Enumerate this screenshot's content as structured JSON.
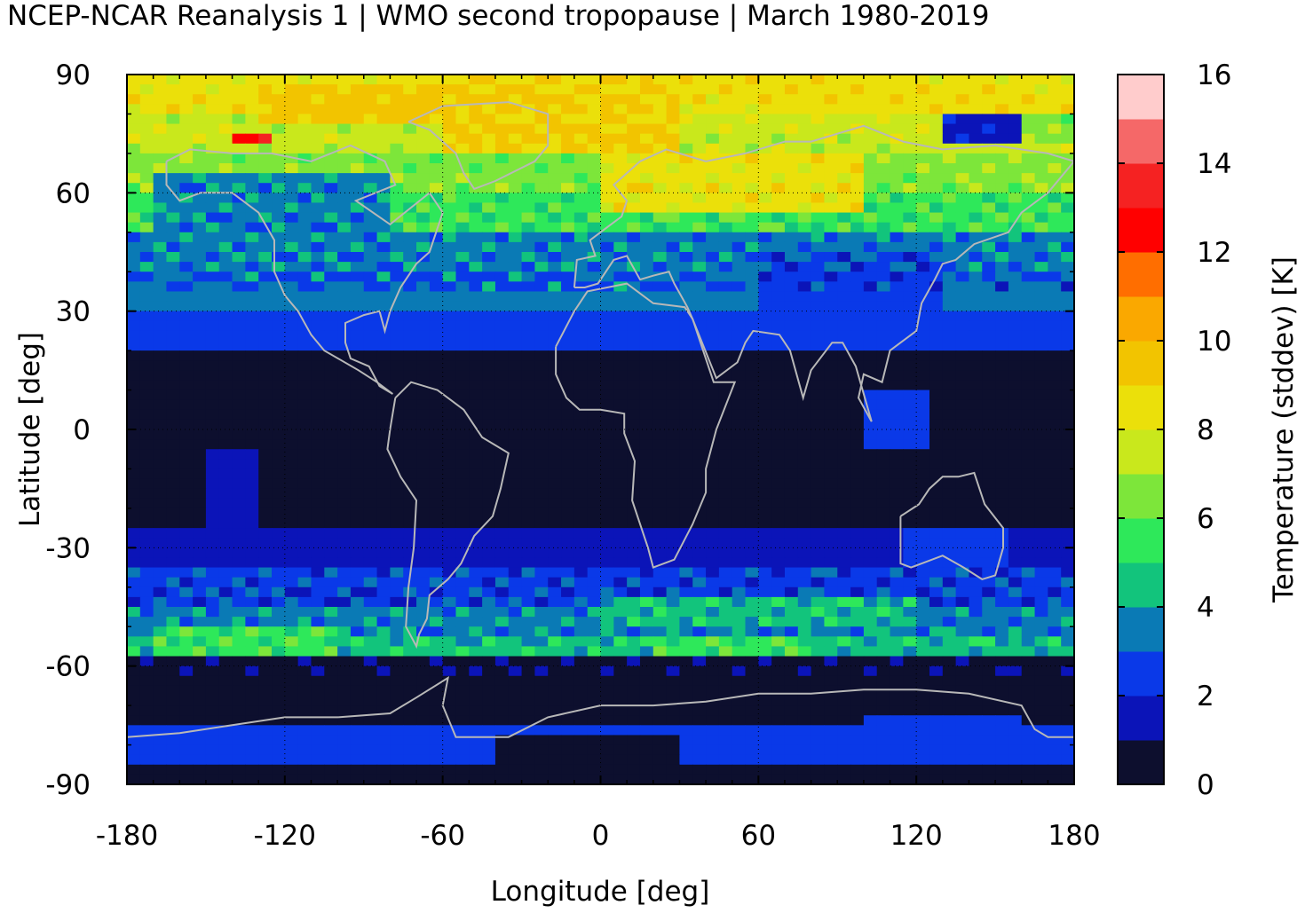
{
  "chart_data": {
    "type": "heatmap",
    "title": "NCEP-NCAR Reanalysis 1 | WMO second tropopause | March 1980-2019",
    "xlabel": "Longitude [deg]",
    "ylabel": "Latitude [deg]",
    "colorbar_label": "Temperature (stddev) [K]",
    "xlim": [
      -180,
      180
    ],
    "ylim": [
      -90,
      90
    ],
    "x_ticks": [
      "-180",
      "-120",
      "-60",
      "0",
      "60",
      "120",
      "180"
    ],
    "y_ticks": [
      "90",
      "60",
      "30",
      "0",
      "-30",
      "-60",
      "-90"
    ],
    "colorbar_ticks": [
      "16",
      "14",
      "12",
      "10",
      "8",
      "6",
      "4",
      "2",
      "0"
    ],
    "colorbar_range": [
      0,
      16
    ],
    "grid": true,
    "colorscale": [
      {
        "from": 0,
        "to": 1,
        "color": "#0d0f2e"
      },
      {
        "from": 1,
        "to": 2,
        "color": "#0b14b8"
      },
      {
        "from": 2,
        "to": 3,
        "color": "#0a39e8"
      },
      {
        "from": 3,
        "to": 4,
        "color": "#0a7ab5"
      },
      {
        "from": 4,
        "to": 5,
        "color": "#12c47c"
      },
      {
        "from": 5,
        "to": 6,
        "color": "#2ee85a"
      },
      {
        "from": 6,
        "to": 7,
        "color": "#7de63a"
      },
      {
        "from": 7,
        "to": 8,
        "color": "#c9e81c"
      },
      {
        "from": 8,
        "to": 9,
        "color": "#ebe00a"
      },
      {
        "from": 9,
        "to": 10,
        "color": "#f2c400"
      },
      {
        "from": 10,
        "to": 11,
        "color": "#faa800"
      },
      {
        "from": 11,
        "to": 12,
        "color": "#ff6e00"
      },
      {
        "from": 12,
        "to": 13,
        "color": "#ff0000"
      },
      {
        "from": 13,
        "to": 14,
        "color": "#f52222"
      },
      {
        "from": 14,
        "to": 15,
        "color": "#f56868"
      },
      {
        "from": 15,
        "to": 16,
        "color": "#ffcccc"
      }
    ],
    "zonal_bands": [
      {
        "lat_min": 80,
        "lat_max": 90,
        "value": 8.5
      },
      {
        "lat_min": 70,
        "lat_max": 80,
        "value": 7.5
      },
      {
        "lat_min": 60,
        "lat_max": 70,
        "value": 6.5
      },
      {
        "lat_min": 50,
        "lat_max": 60,
        "value": 5.5
      },
      {
        "lat_min": 40,
        "lat_max": 50,
        "value": 3.5
      },
      {
        "lat_min": 30,
        "lat_max": 40,
        "value": 3.0
      },
      {
        "lat_min": 20,
        "lat_max": 30,
        "value": 2.5
      },
      {
        "lat_min": -25,
        "lat_max": 20,
        "value": 0.5
      },
      {
        "lat_min": -35,
        "lat_max": -25,
        "value": 1.5
      },
      {
        "lat_min": -45,
        "lat_max": -35,
        "value": 2.5
      },
      {
        "lat_min": -52,
        "lat_max": -45,
        "value": 3.5
      },
      {
        "lat_min": -58,
        "lat_max": -52,
        "value": 4.5
      },
      {
        "lat_min": -65,
        "lat_max": -58,
        "value": 0.5
      },
      {
        "lat_min": -75,
        "lat_max": -65,
        "value": 0.5
      },
      {
        "lat_min": -85,
        "lat_max": -75,
        "value": 2.0
      },
      {
        "lat_min": -90,
        "lat_max": -85,
        "value": 0.5
      }
    ],
    "regional_patches": [
      {
        "lon_min": -170,
        "lon_max": -80,
        "lat_min": 45,
        "lat_max": 65,
        "value": 3.5
      },
      {
        "lon_min": -60,
        "lon_max": 30,
        "lat_min": 70,
        "lat_max": 90,
        "value": 9.0
      },
      {
        "lon_min": -130,
        "lon_max": -60,
        "lat_min": 78,
        "lat_max": 88,
        "value": 9.5
      },
      {
        "lon_min": 0,
        "lon_max": 100,
        "lat_min": 55,
        "lat_max": 70,
        "value": 8.5
      },
      {
        "lon_min": -140,
        "lon_max": -125,
        "lat_min": 72,
        "lat_max": 76,
        "value": 12.5
      },
      {
        "lon_min": 130,
        "lon_max": 160,
        "lat_min": 73,
        "lat_max": 80,
        "value": 1.5
      },
      {
        "lon_min": 160,
        "lon_max": 180,
        "lat_min": 72,
        "lat_max": 80,
        "value": 6.5
      },
      {
        "lon_min": 60,
        "lon_max": 130,
        "lat_min": 30,
        "lat_max": 45,
        "value": 2.5
      },
      {
        "lon_min": 100,
        "lon_max": 125,
        "lat_min": -5,
        "lat_max": 10,
        "value": 2.0
      },
      {
        "lon_min": -150,
        "lon_max": -130,
        "lat_min": -25,
        "lat_max": -5,
        "value": 1.5
      },
      {
        "lon_min": 115,
        "lon_max": 155,
        "lat_min": -35,
        "lat_max": -25,
        "value": 2.5
      },
      {
        "lon_min": 0,
        "lon_max": 120,
        "lat_min": -50,
        "lat_max": -42,
        "value": 4.5
      },
      {
        "lon_min": -170,
        "lon_max": -100,
        "lat_min": -57,
        "lat_max": -50,
        "value": 5.5
      },
      {
        "lon_min": 20,
        "lon_max": 80,
        "lat_min": -57,
        "lat_max": -52,
        "value": 5.5
      },
      {
        "lon_min": -40,
        "lon_max": 30,
        "lat_min": -90,
        "lat_max": -78,
        "value": 0.5
      },
      {
        "lon_min": 100,
        "lon_max": 160,
        "lat_min": -78,
        "lat_max": -72,
        "value": 2.5
      }
    ]
  }
}
